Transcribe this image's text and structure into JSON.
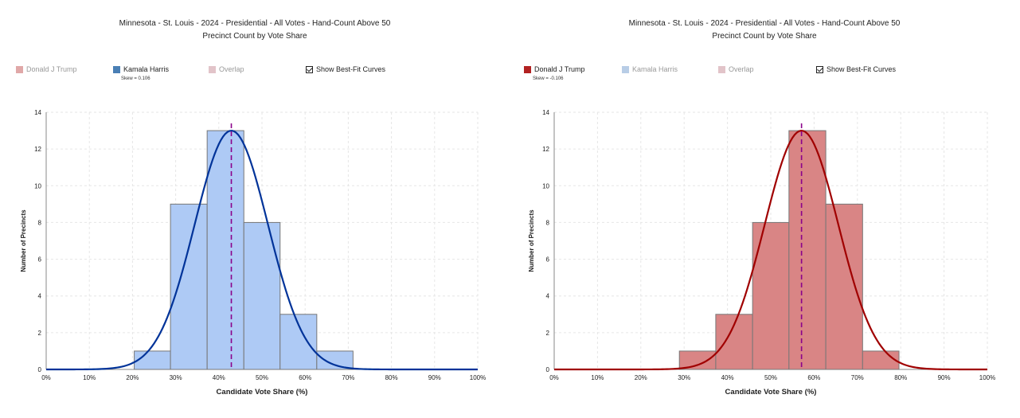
{
  "panels": [
    {
      "title_line1": "Minnesota - St. Louis - 2024 - Presidential - All Votes - Hand-Count Above 50",
      "title_line2": "Precinct Count by Vote Share",
      "legend": [
        {
          "label": "Donald J Trump",
          "color": "#e0a8a8",
          "active": false
        },
        {
          "label": "Kamala Harris",
          "color": "#4a7fb5",
          "active": true
        },
        {
          "label": "Overlap",
          "color": "#e2c4c9",
          "active": false
        },
        {
          "label": "Show Best-Fit Curves",
          "checkbox": true,
          "checked": true
        }
      ],
      "skew_label": "Skew = 0.106"
    },
    {
      "title_line1": "Minnesota - St. Louis - 2024 - Presidential - All Votes - Hand-Count Above 50",
      "title_line2": "Precinct Count by Vote Share",
      "legend": [
        {
          "label": "Donald J Trump",
          "color": "#b22222",
          "active": true
        },
        {
          "label": "Kamala Harris",
          "color": "#b8cde6",
          "active": false
        },
        {
          "label": "Overlap",
          "color": "#e2c4c9",
          "active": false
        },
        {
          "label": "Show Best-Fit Curves",
          "checkbox": true,
          "checked": true
        }
      ],
      "skew_label": "Skew = -0.106"
    }
  ],
  "chart_data": [
    {
      "type": "bar",
      "xlabel": "Candidate Vote Share (%)",
      "ylabel": "Number of Precincts",
      "xlim": [
        0,
        100
      ],
      "ylim": [
        0,
        14
      ],
      "xticks": [
        "0%",
        "10%",
        "20%",
        "30%",
        "40%",
        "50%",
        "60%",
        "70%",
        "80%",
        "90%",
        "100%"
      ],
      "yticks": [
        "0",
        "2",
        "4",
        "6",
        "8",
        "10",
        "12",
        "14"
      ],
      "grid": true,
      "bins": [
        {
          "x0": 20.4,
          "x1": 28.8,
          "count": 1
        },
        {
          "x0": 28.8,
          "x1": 37.3,
          "count": 9
        },
        {
          "x0": 37.3,
          "x1": 45.8,
          "count": 13
        },
        {
          "x0": 45.8,
          "x1": 54.2,
          "count": 8
        },
        {
          "x0": 54.2,
          "x1": 62.7,
          "count": 3
        },
        {
          "x0": 62.7,
          "x1": 71.1,
          "count": 1
        }
      ],
      "fit_curve": {
        "mean": 42.9,
        "sd": 8.5,
        "peak": 13
      },
      "mean_line": 42.9,
      "bar_fill": "#aecaf5",
      "bar_stroke": "#777777",
      "curve_color": "#003399",
      "mean_color": "#8b008b"
    },
    {
      "type": "bar",
      "xlabel": "Candidate Vote Share (%)",
      "ylabel": "Number of Precincts",
      "xlim": [
        0,
        100
      ],
      "ylim": [
        0,
        14
      ],
      "xticks": [
        "0%",
        "10%",
        "20%",
        "30%",
        "40%",
        "50%",
        "60%",
        "70%",
        "80%",
        "90%",
        "100%"
      ],
      "yticks": [
        "0",
        "2",
        "4",
        "6",
        "8",
        "10",
        "12",
        "14"
      ],
      "grid": true,
      "bins": [
        {
          "x0": 28.9,
          "x1": 37.3,
          "count": 1
        },
        {
          "x0": 37.3,
          "x1": 45.8,
          "count": 3
        },
        {
          "x0": 45.8,
          "x1": 54.2,
          "count": 8
        },
        {
          "x0": 54.2,
          "x1": 62.7,
          "count": 13
        },
        {
          "x0": 62.7,
          "x1": 71.2,
          "count": 9
        },
        {
          "x0": 71.2,
          "x1": 79.6,
          "count": 1
        }
      ],
      "fit_curve": {
        "mean": 57.1,
        "sd": 8.5,
        "peak": 13
      },
      "mean_line": 57.1,
      "bar_fill": "#d98585",
      "bar_stroke": "#777777",
      "curve_color": "#a00000",
      "mean_color": "#8b008b"
    }
  ]
}
